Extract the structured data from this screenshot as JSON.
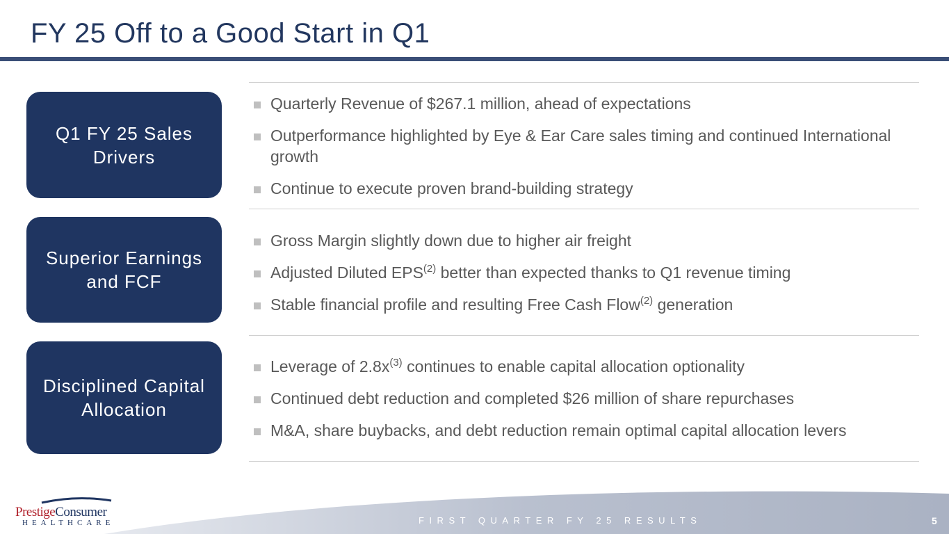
{
  "title": "FY 25 Off to a Good Start in Q1",
  "sections": [
    {
      "label": "Q1 FY 25 Sales Drivers",
      "bullets": [
        [
          {
            "t": "Quarterly Revenue of $267.1 million, ahead of expectations"
          }
        ],
        [
          {
            "t": "Outperformance highlighted by Eye & Ear Care sales timing and continued International growth"
          }
        ],
        [
          {
            "t": "Continue to execute proven brand-building strategy"
          }
        ]
      ]
    },
    {
      "label": "Superior Earnings and FCF",
      "bullets": [
        [
          {
            "t": "Gross Margin slightly down due to higher air freight"
          }
        ],
        [
          {
            "t": "Adjusted Diluted EPS"
          },
          {
            "sup": "(2)"
          },
          {
            "t": " better than expected thanks to Q1 revenue timing"
          }
        ],
        [
          {
            "t": "Stable financial profile and resulting Free Cash Flow"
          },
          {
            "sup": "(2)"
          },
          {
            "t": " generation"
          }
        ]
      ]
    },
    {
      "label": "Disciplined Capital Allocation",
      "bullets": [
        [
          {
            "t": "Leverage of 2.8x"
          },
          {
            "sup": "(3)"
          },
          {
            "t": " continues to enable capital allocation optionality"
          }
        ],
        [
          {
            "t": "Continued debt reduction and completed $26 million of share repurchases"
          }
        ],
        [
          {
            "t": "M&A, share buybacks, and debt reduction remain optimal capital allocation levers"
          }
        ]
      ]
    }
  ],
  "footer": {
    "logo_main": "Prestige",
    "logo_second": "Consumer",
    "logo_sub": "HEALTHCARE",
    "text": "FIRST QUARTER FY 25 RESULTS",
    "page": "5"
  }
}
